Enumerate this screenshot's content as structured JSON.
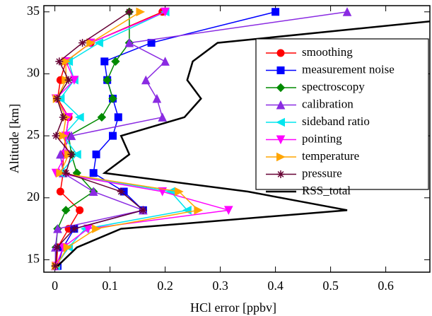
{
  "chart_data": {
    "type": "line",
    "x_label": "HCl error [ppbv]",
    "y_label": "Altitude [km]",
    "y": [
      14.5,
      16,
      17.5,
      19,
      20.5,
      22,
      23.5,
      25,
      26.5,
      28,
      29.5,
      31,
      32.5,
      35
    ],
    "xlim": [
      -0.02,
      0.68
    ],
    "ylim": [
      14,
      35.5
    ],
    "xticks": [
      0,
      0.1,
      0.2,
      0.3,
      0.4,
      0.5,
      0.6
    ],
    "yticks": [
      15,
      20,
      25,
      30,
      35
    ],
    "legend": "upper right",
    "series": [
      {
        "name": "smoothing",
        "color": "#ff0000",
        "marker": "circle",
        "values": [
          0.003,
          0.005,
          0.025,
          0.045,
          0.01,
          0.015,
          0.015,
          0.02,
          0.025,
          0.005,
          0.01,
          0.02,
          0.065,
          0.195
        ]
      },
      {
        "name": "measurement noise",
        "color": "#0000ff",
        "marker": "square",
        "values": [
          0.005,
          0.015,
          0.035,
          0.16,
          0.125,
          0.07,
          0.075,
          0.105,
          0.115,
          0.105,
          0.095,
          0.09,
          0.175,
          0.4
        ]
      },
      {
        "name": "spectroscopy",
        "color": "#008a00",
        "marker": "diamond",
        "values": [
          0.001,
          0.002,
          0.005,
          0.02,
          0.07,
          0.04,
          0.03,
          0.025,
          0.085,
          0.105,
          0.095,
          0.11,
          0.135,
          0.135
        ]
      },
      {
        "name": "calibration",
        "color": "#8a2be2",
        "marker": "triangle-up",
        "values": [
          0.001,
          0.001,
          0.005,
          0.16,
          0.07,
          0.015,
          0.01,
          0.03,
          0.195,
          0.185,
          0.165,
          0.2,
          0.135,
          0.53
        ]
      },
      {
        "name": "sideband ratio",
        "color": "#00e5ee",
        "marker": "triangle-left",
        "values": [
          0.002,
          0.025,
          0.055,
          0.24,
          0.21,
          0.01,
          0.04,
          0.015,
          0.045,
          0.01,
          0.035,
          0.025,
          0.08,
          0.2
        ]
      },
      {
        "name": "pointing",
        "color": "#ff00ff",
        "marker": "triangle-down",
        "values": [
          0.002,
          0.015,
          0.06,
          0.315,
          0.195,
          0.002,
          0.02,
          0.02,
          0.025,
          0.002,
          0.035,
          0.02,
          0.065,
          0.2
        ]
      },
      {
        "name": "temperature",
        "color": "#ffa500",
        "marker": "triangle-right",
        "values": [
          0.002,
          0.023,
          0.075,
          0.26,
          0.225,
          0.01,
          0.025,
          0.015,
          0.02,
          0.004,
          0.02,
          0.02,
          0.065,
          0.155
        ]
      },
      {
        "name": "pressure",
        "color": "#660033",
        "marker": "star",
        "values": [
          0.001,
          0.004,
          0.035,
          0.16,
          0.12,
          0.02,
          0.03,
          0.002,
          0.015,
          0.004,
          0.025,
          0.008,
          0.05,
          0.135
        ]
      },
      {
        "name": "RSS_total",
        "color": "#000000",
        "marker": "none",
        "values": [
          0.005,
          0.04,
          0.12,
          0.53,
          0.35,
          0.09,
          0.135,
          0.12,
          0.235,
          0.265,
          0.24,
          0.25,
          0.295,
          0.85
        ]
      }
    ]
  }
}
